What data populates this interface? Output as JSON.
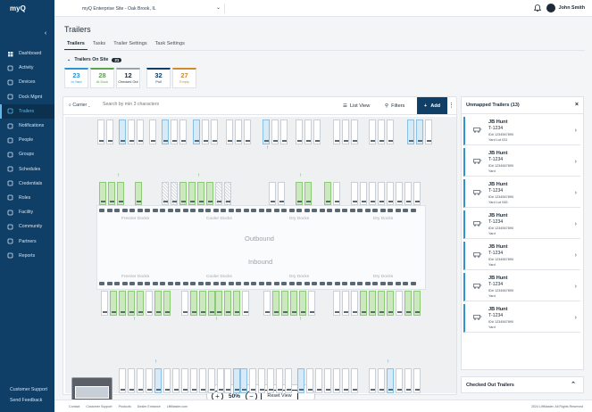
{
  "app": {
    "logo": "myQ"
  },
  "topbar": {
    "site": "myQ Enterprise Site - Oak Brook, IL",
    "user": "John Smith"
  },
  "sidebar": {
    "items": [
      {
        "label": "Dashboard",
        "icon": "dashboard-icon"
      },
      {
        "label": "Activity",
        "icon": "activity-icon"
      },
      {
        "label": "Devices",
        "icon": "devices-icon"
      },
      {
        "label": "Dock Mgmt",
        "icon": "dock-icon"
      },
      {
        "label": "Trailers",
        "icon": "trailer-icon"
      },
      {
        "label": "Notifications",
        "icon": "bell-icon"
      },
      {
        "label": "People",
        "icon": "people-icon"
      },
      {
        "label": "Groups",
        "icon": "groups-icon"
      },
      {
        "label": "Schedules",
        "icon": "calendar-icon"
      },
      {
        "label": "Credentials",
        "icon": "credentials-icon"
      },
      {
        "label": "Roles",
        "icon": "roles-icon"
      },
      {
        "label": "Facility",
        "icon": "facility-icon"
      },
      {
        "label": "Community",
        "icon": "community-icon"
      },
      {
        "label": "Partners",
        "icon": "partners-icon"
      },
      {
        "label": "Reports",
        "icon": "reports-icon"
      }
    ],
    "active": "Trailers",
    "support": "Customer Support",
    "feedback": "Send Feedback"
  },
  "page": {
    "title": "Trailers"
  },
  "tabs": [
    "Trailers",
    "Tasks",
    "Trailer Settings",
    "Task Settings"
  ],
  "onsite": {
    "title": "Trailers On Site",
    "count": "21",
    "stats": [
      {
        "value": "23",
        "label": "In Yard",
        "color": "#2f93d1"
      },
      {
        "value": "28",
        "label": "At Dock",
        "color": "#5aa34a"
      },
      {
        "value": "12",
        "label": "Checked Out",
        "color": "#9aa3ab"
      },
      {
        "value": "32",
        "label": "Pull",
        "color": "#0f3e66"
      },
      {
        "value": "27",
        "label": "Empty",
        "color": "#d28a2a"
      }
    ]
  },
  "toolbar": {
    "carrier": "Carrier",
    "search_placeholder": "Search by min 3 characters",
    "list_view": "List View",
    "filters": "Filters",
    "add": "Add"
  },
  "yard": {
    "outbound": "Outbound",
    "inbound": "Inbound",
    "docks_top": [
      "Freezer Docks",
      "Cooler Docks",
      "Dry Docks",
      "Dry Docks"
    ],
    "docks_bottom": [
      "Freezer Docks",
      "Cooler Docks",
      "Dry Docks",
      "Dry Docks"
    ],
    "zoom": "50%",
    "reset": "Reset View"
  },
  "panel": {
    "title": "Unmapped Trailers (13)",
    "cards": [
      {
        "carrier": "JB Hunt",
        "trailer": "T-1234",
        "id": "ID# 1234567890",
        "loc": "Yard Lot 031"
      },
      {
        "carrier": "JB Hunt",
        "trailer": "T-1234",
        "id": "ID# 1234567890",
        "loc": "Yard"
      },
      {
        "carrier": "JB Hunt",
        "trailer": "T-1234",
        "id": "ID# 1234567890",
        "loc": "Yard Lot 045"
      },
      {
        "carrier": "JB Hunt",
        "trailer": "T-1234",
        "id": "ID# 1234567890",
        "loc": "Yard"
      },
      {
        "carrier": "JB Hunt",
        "trailer": "T-1234",
        "id": "ID# 1234567890",
        "loc": "Yard"
      },
      {
        "carrier": "JB Hunt",
        "trailer": "T-1234",
        "id": "ID# 1234567890",
        "loc": "Yard"
      },
      {
        "carrier": "JB Hunt",
        "trailer": "T-1234",
        "id": "ID# 1234567890",
        "loc": "Yard"
      }
    ],
    "checked_out": "Checked Out Trailers"
  },
  "footer": {
    "links": [
      "Contact",
      "Customer Support",
      "Products",
      "Dealer Entrance",
      "LiftMaster.com"
    ],
    "copyright": "2024 LiftMaster. All Rights Reserved"
  }
}
